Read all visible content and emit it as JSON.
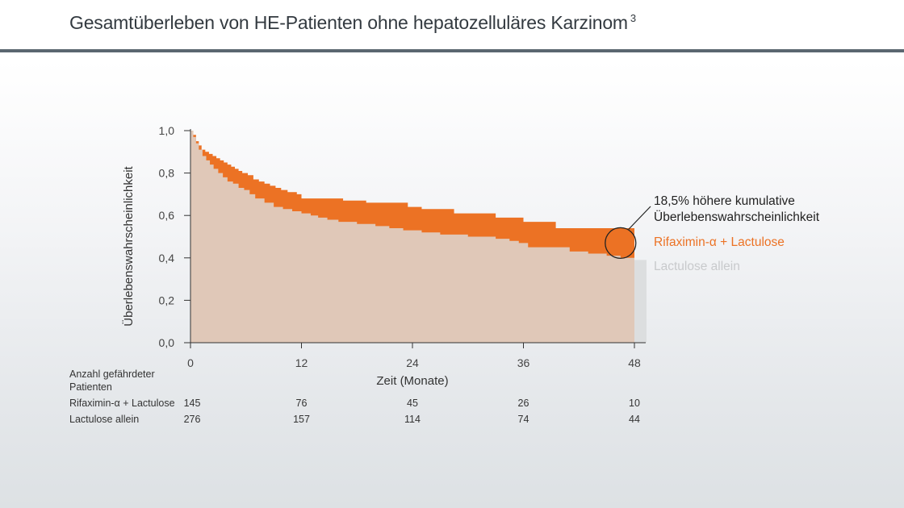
{
  "header": {
    "title": "Gesamtüberleben von HE-Patienten ohne hepatozelluläres Karzinom",
    "footnote": "3"
  },
  "chart_data": {
    "type": "area",
    "subtype": "kaplan-meier step curves",
    "xlabel": "Zeit (Monate)",
    "ylabel": "Überlebenswahrscheinlichkeit",
    "xlim": [
      0,
      48
    ],
    "ylim": [
      0,
      1
    ],
    "xticks": [
      0,
      12,
      24,
      36,
      48
    ],
    "xtick_labels": [
      "0",
      "12",
      "24",
      "36",
      "48"
    ],
    "yticks": [
      0,
      0.2,
      0.4,
      0.6,
      0.8,
      1.0
    ],
    "ytick_labels": [
      "0,0",
      "0,2",
      "0,4",
      "0,6",
      "0,8",
      "1,0"
    ],
    "grid": false,
    "legend_position": "right",
    "series": [
      {
        "name": "Rifaximin-α + Lactulose",
        "color": "#ec7224",
        "points": [
          [
            0,
            1.0
          ],
          [
            0.3,
            0.98
          ],
          [
            0.6,
            0.95
          ],
          [
            0.9,
            0.93
          ],
          [
            1.2,
            0.91
          ],
          [
            1.6,
            0.9
          ],
          [
            2.0,
            0.89
          ],
          [
            2.4,
            0.88
          ],
          [
            2.8,
            0.87
          ],
          [
            3.2,
            0.86
          ],
          [
            3.6,
            0.85
          ],
          [
            4.0,
            0.84
          ],
          [
            4.4,
            0.83
          ],
          [
            4.8,
            0.82
          ],
          [
            5.2,
            0.81
          ],
          [
            5.6,
            0.8
          ],
          [
            6.2,
            0.79
          ],
          [
            6.8,
            0.77
          ],
          [
            7.4,
            0.76
          ],
          [
            8.0,
            0.75
          ],
          [
            8.6,
            0.74
          ],
          [
            9.2,
            0.73
          ],
          [
            9.8,
            0.72
          ],
          [
            10.5,
            0.71
          ],
          [
            11.5,
            0.7
          ],
          [
            12.0,
            0.68
          ],
          [
            16.5,
            0.67
          ],
          [
            19.0,
            0.66
          ],
          [
            23.5,
            0.64
          ],
          [
            25.0,
            0.63
          ],
          [
            28.5,
            0.61
          ],
          [
            33.0,
            0.59
          ],
          [
            36.0,
            0.57
          ],
          [
            39.5,
            0.54
          ],
          [
            48.0,
            0.54
          ]
        ]
      },
      {
        "name": "Lactulose allein",
        "color": "#e0c8b8",
        "legend_color": "#c8cacc",
        "points": [
          [
            0,
            1.0
          ],
          [
            0.3,
            0.97
          ],
          [
            0.6,
            0.94
          ],
          [
            0.9,
            0.91
          ],
          [
            1.3,
            0.88
          ],
          [
            1.7,
            0.86
          ],
          [
            2.1,
            0.84
          ],
          [
            2.5,
            0.82
          ],
          [
            3.0,
            0.8
          ],
          [
            3.5,
            0.78
          ],
          [
            4.0,
            0.76
          ],
          [
            4.6,
            0.75
          ],
          [
            5.2,
            0.73
          ],
          [
            5.8,
            0.72
          ],
          [
            6.4,
            0.7
          ],
          [
            7.0,
            0.68
          ],
          [
            8.0,
            0.66
          ],
          [
            9.0,
            0.64
          ],
          [
            10.0,
            0.63
          ],
          [
            11.0,
            0.62
          ],
          [
            12.0,
            0.61
          ],
          [
            13.0,
            0.6
          ],
          [
            13.8,
            0.59
          ],
          [
            14.8,
            0.58
          ],
          [
            16.0,
            0.57
          ],
          [
            18.0,
            0.56
          ],
          [
            20.0,
            0.55
          ],
          [
            21.5,
            0.54
          ],
          [
            23.0,
            0.53
          ],
          [
            25.0,
            0.52
          ],
          [
            27.0,
            0.51
          ],
          [
            30.0,
            0.5
          ],
          [
            33.0,
            0.49
          ],
          [
            34.5,
            0.48
          ],
          [
            35.5,
            0.47
          ],
          [
            36.5,
            0.45
          ],
          [
            41.0,
            0.43
          ],
          [
            43.0,
            0.42
          ],
          [
            45.0,
            0.41
          ],
          [
            46.5,
            0.4
          ],
          [
            48.0,
            0.39
          ]
        ]
      }
    ],
    "annotation": {
      "line1": "18,5% höhere kumulative",
      "line2": "Überlebenswahrscheinlichkeit",
      "target_x": 46.5,
      "target_y": 0.47
    },
    "risk_table": {
      "title_line1": "Anzahl gefährdeter",
      "title_line2": "Patienten",
      "rows": [
        {
          "label": "Rifaximin-α + Lactulose",
          "values": [
            "145",
            "76",
            "45",
            "26",
            "10"
          ]
        },
        {
          "label": "Lactulose allein",
          "values": [
            "276",
            "157",
            "114",
            "74",
            "44"
          ]
        }
      ]
    }
  }
}
